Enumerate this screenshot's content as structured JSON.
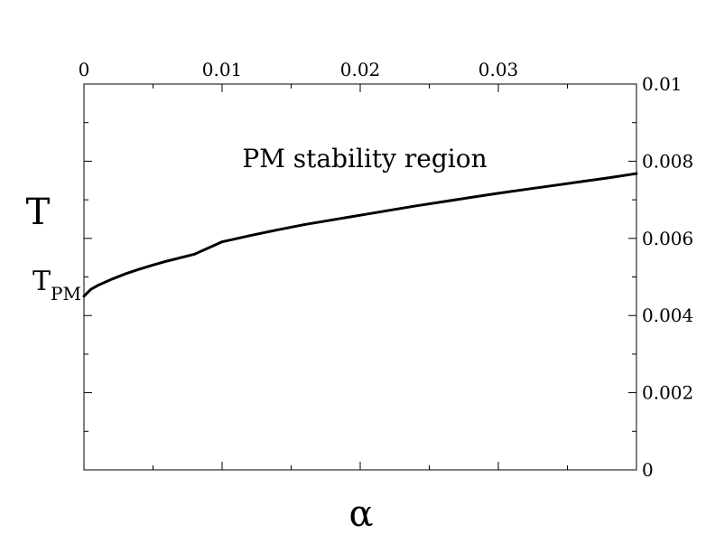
{
  "chart_data": {
    "type": "line",
    "xlabel": "α",
    "ylabel": "T",
    "annotation": "PM stability region",
    "tpm_label": {
      "main": "T",
      "sub": "PM"
    },
    "xlim": [
      0,
      0.04
    ],
    "ylim": [
      0,
      0.01
    ],
    "x_ticks": [
      {
        "value": 0,
        "label": "0"
      },
      {
        "value": 0.01,
        "label": "0.01"
      },
      {
        "value": 0.02,
        "label": "0.02"
      },
      {
        "value": 0.03,
        "label": "0.03"
      }
    ],
    "x_minor_ticks": [
      0.005,
      0.015,
      0.025,
      0.035
    ],
    "y_ticks": [
      {
        "value": 0,
        "label": "0"
      },
      {
        "value": 0.002,
        "label": "0.002"
      },
      {
        "value": 0.004,
        "label": "0.004"
      },
      {
        "value": 0.006,
        "label": "0.006"
      },
      {
        "value": 0.008,
        "label": "0.008"
      },
      {
        "value": 0.01,
        "label": "0.01"
      }
    ],
    "y_minor_ticks": [
      0.001,
      0.003,
      0.005,
      0.007,
      0.009
    ],
    "grid": false,
    "series": [
      {
        "color": "#000000",
        "x": [
          0,
          0.0005,
          0.001,
          0.002,
          0.003,
          0.004,
          0.005,
          0.006,
          0.008,
          0.01,
          0.012,
          0.014,
          0.016,
          0.018,
          0.02,
          0.022,
          0.024,
          0.026,
          0.028,
          0.03,
          0.032,
          0.034,
          0.036,
          0.038,
          0.04
        ],
        "y": [
          0.0045,
          0.00468,
          0.00478,
          0.00494,
          0.00508,
          0.0052,
          0.00531,
          0.00541,
          0.00559,
          0.00591,
          0.00607,
          0.00622,
          0.00636,
          0.00648,
          0.0066,
          0.00672,
          0.00684,
          0.00695,
          0.00706,
          0.00717,
          0.00727,
          0.00737,
          0.00747,
          0.00757,
          0.00768
        ]
      }
    ]
  }
}
